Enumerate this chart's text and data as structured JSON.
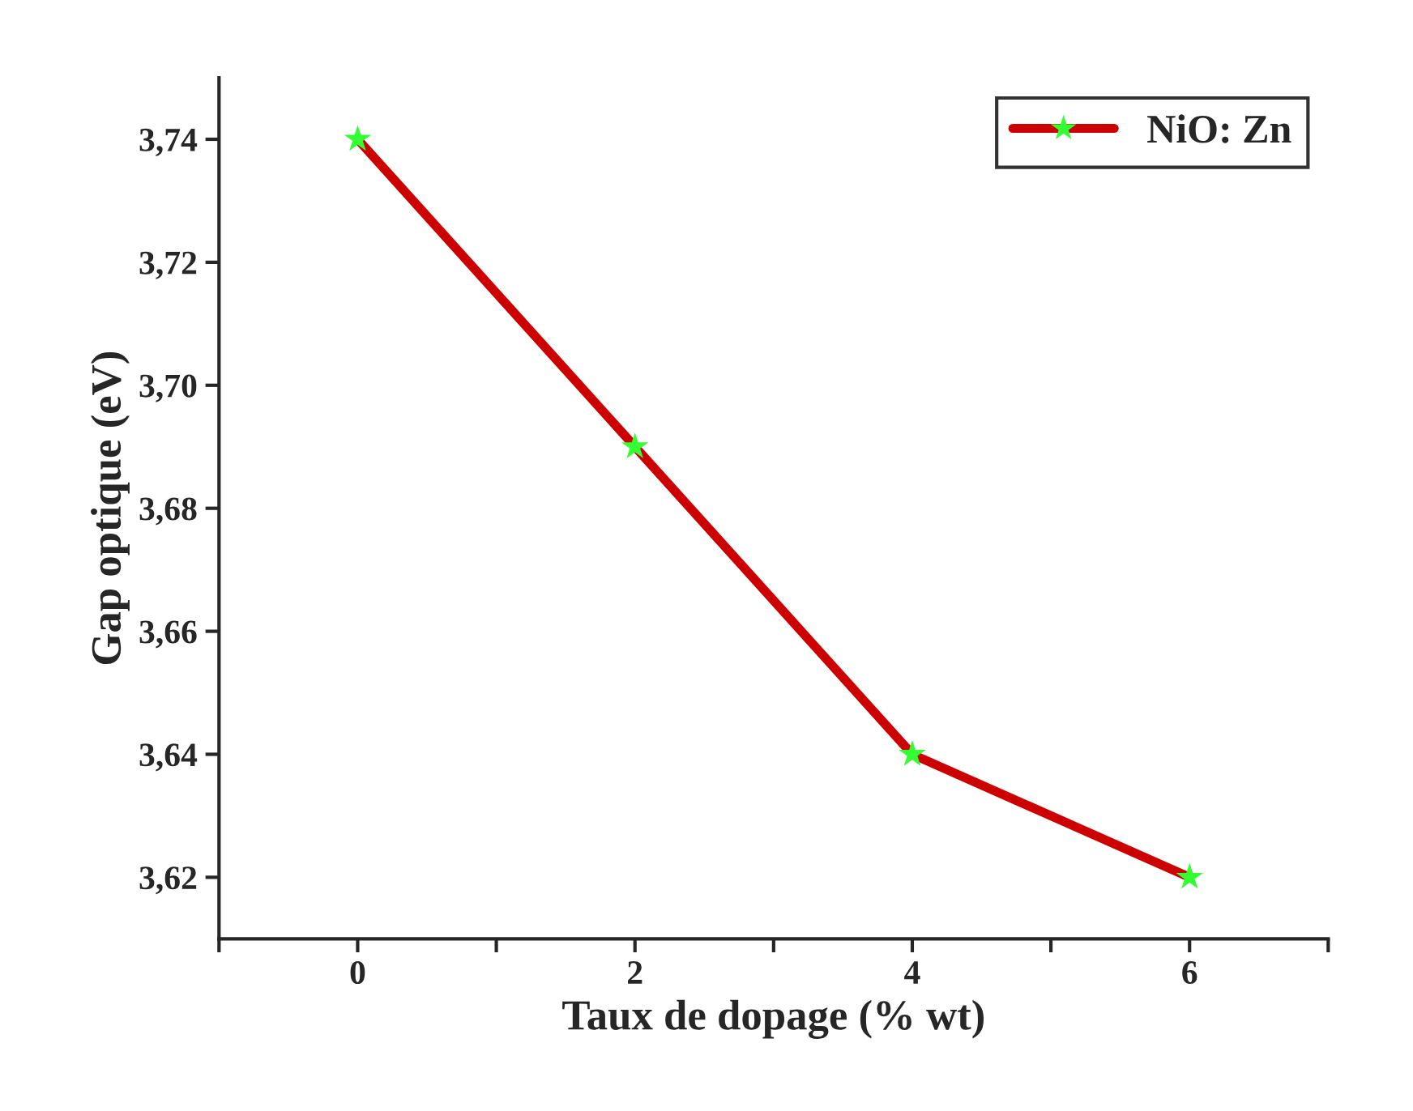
{
  "chart_data": {
    "type": "line",
    "xlabel": "Taux de dopage (% wt)",
    "ylabel": "Gap optique (eV)",
    "x": [
      0,
      2,
      4,
      6
    ],
    "series": [
      {
        "name": "NiO: Zn",
        "color": "#cc0000",
        "values": [
          3.74,
          3.69,
          3.64,
          3.62
        ]
      },
      {
        "type": "scatter",
        "marker": "star",
        "color": "#33ff33",
        "values": [
          3.74,
          3.69,
          3.64,
          3.62
        ]
      }
    ],
    "line_style": "solid",
    "legend": "top right",
    "grid": false,
    "xlim": [
      -1,
      7
    ],
    "xticks": [
      {
        "value": -1,
        "label": null
      },
      0,
      {
        "value": 1,
        "label": null
      },
      2,
      {
        "value": 3,
        "label": null
      },
      4,
      {
        "value": 5,
        "label": null
      },
      6,
      {
        "value": 7,
        "label": null
      }
    ],
    "ylim": [
      3.61,
      3.75
    ],
    "yticks": [
      {
        "value": 3.62,
        "label": "3,62"
      },
      {
        "value": 3.64,
        "label": "3,64"
      },
      {
        "value": 3.66,
        "label": "3,66"
      },
      {
        "value": 3.68,
        "label": "3,68"
      },
      {
        "value": 3.7,
        "label": "3,70"
      },
      {
        "value": 3.72,
        "label": "3,72"
      },
      {
        "value": 3.74,
        "label": "3,74"
      }
    ]
  }
}
